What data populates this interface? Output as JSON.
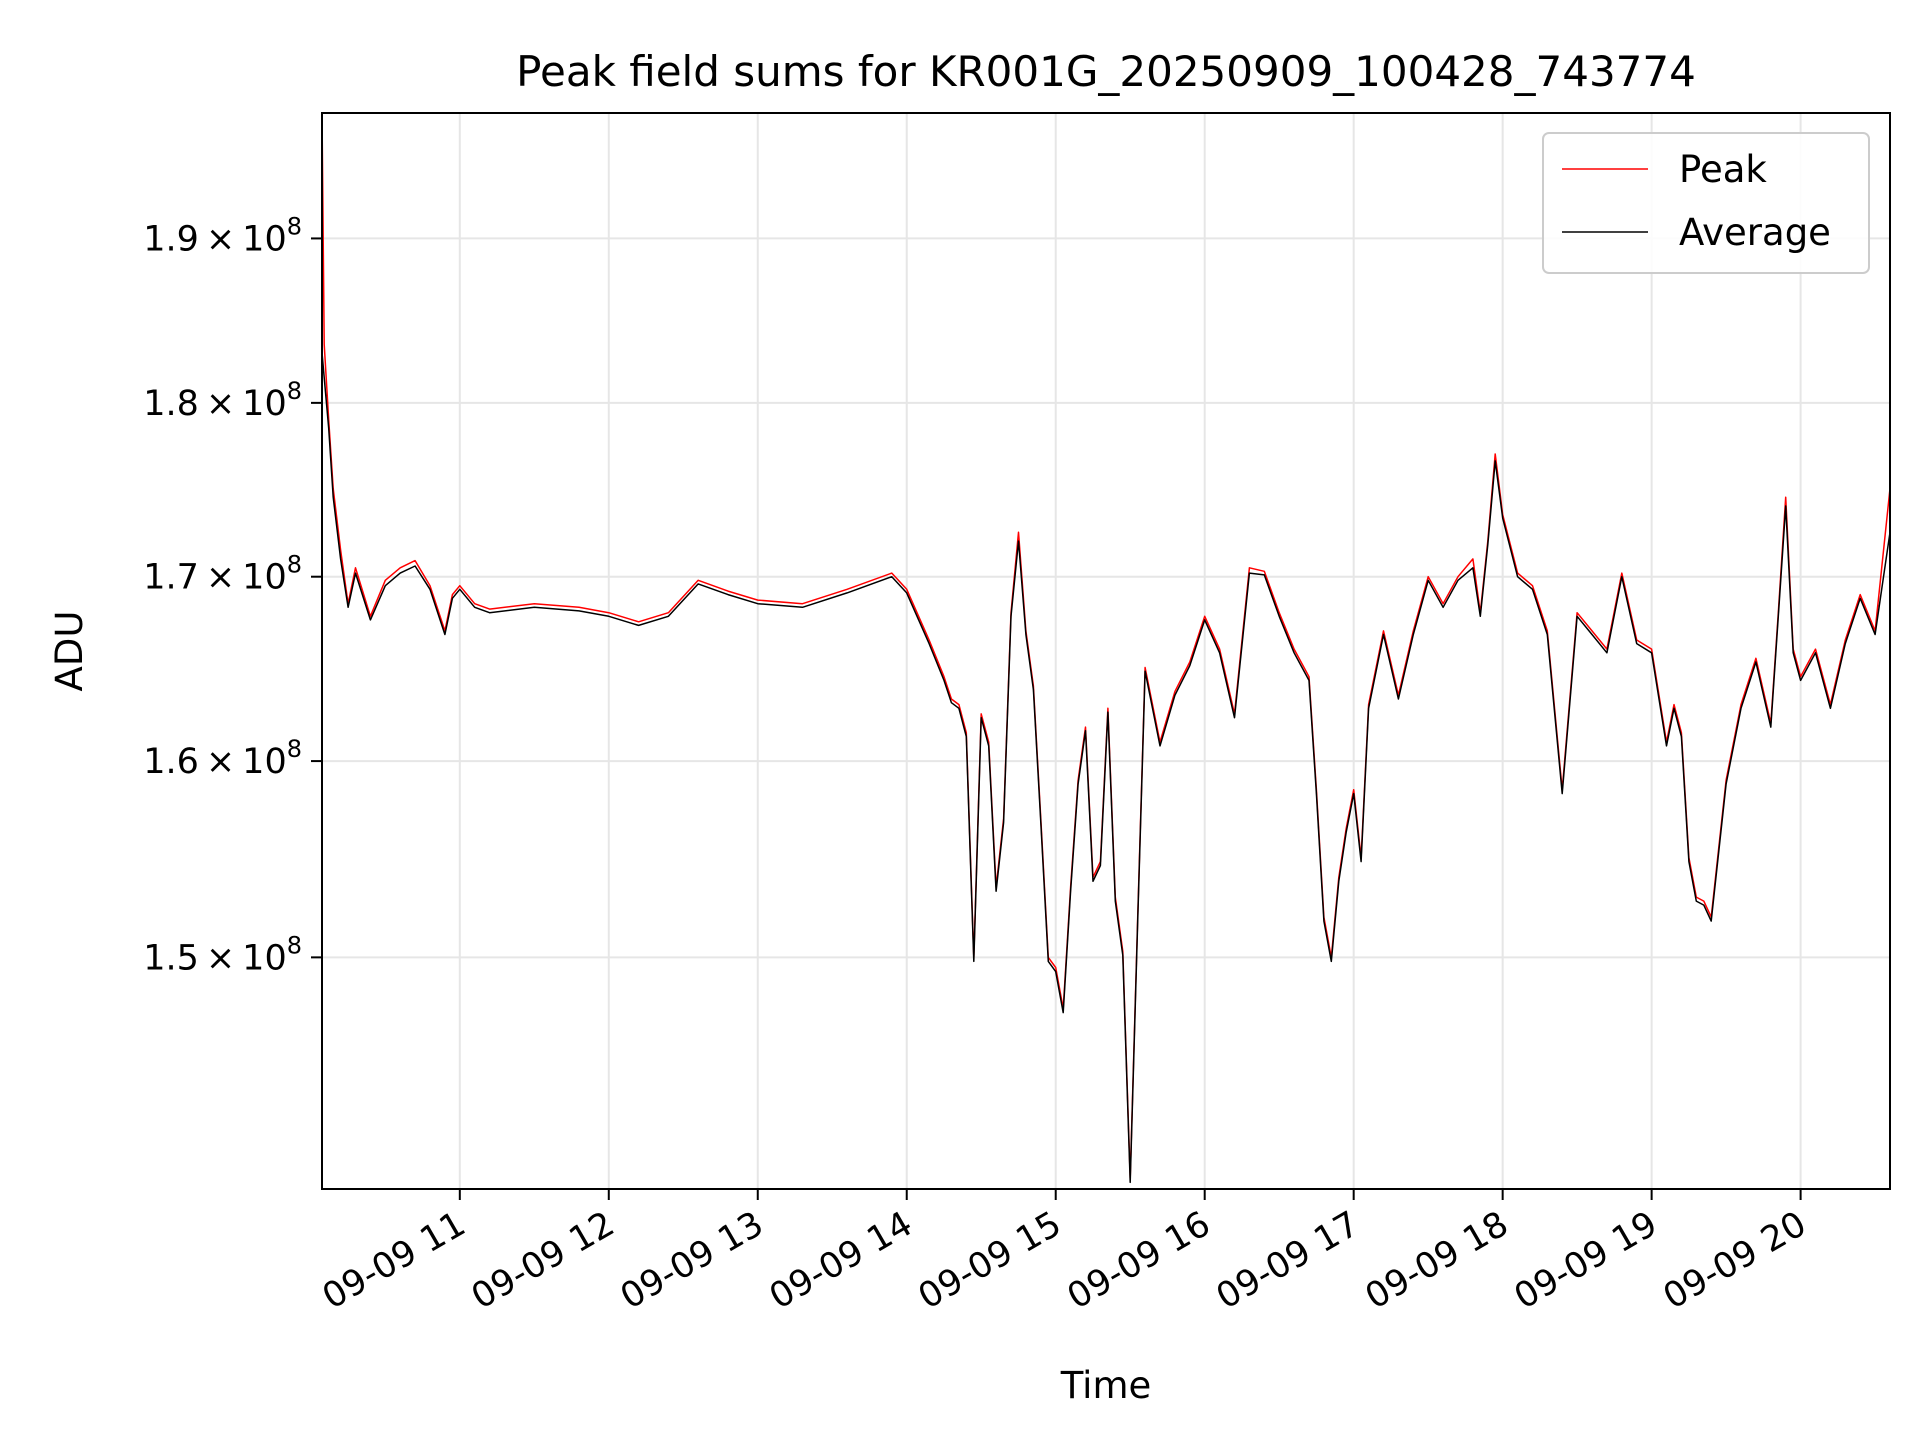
{
  "chart_data": {
    "type": "line",
    "title": "Peak field sums for KR001G_20250909_100428_743774",
    "xlabel": "Time",
    "ylabel": "ADU",
    "x_tick_labels": [
      "09-09 11",
      "09-09 12",
      "09-09 13",
      "09-09 14",
      "09-09 15",
      "09-09 16",
      "09-09 17",
      "09-09 18",
      "09-09 19",
      "09-09 20"
    ],
    "x_ticks_hours": [
      11,
      12,
      13,
      14,
      15,
      16,
      17,
      18,
      19,
      20
    ],
    "xlim_hours": [
      10.075,
      20.6
    ],
    "y_tick_labels": [
      {
        "value": 150000000,
        "mantissa": "1.5",
        "exp": "8"
      },
      {
        "value": 160000000,
        "mantissa": "1.6",
        "exp": "8"
      },
      {
        "value": 170000000,
        "mantissa": "1.7",
        "exp": "8"
      },
      {
        "value": 180000000,
        "mantissa": "1.8",
        "exp": "8"
      },
      {
        "value": 190000000,
        "mantissa": "1.9",
        "exp": "8"
      }
    ],
    "ylim": [
      139000000,
      198000000
    ],
    "yscale": "log",
    "grid": true,
    "legend_position": "top-right",
    "series": [
      {
        "name": "Peak",
        "color": "#ff0000",
        "x_hours": [
          10.075,
          10.09,
          10.12,
          10.15,
          10.2,
          10.25,
          10.3,
          10.4,
          10.5,
          10.6,
          10.7,
          10.8,
          10.9,
          10.95,
          11.0,
          11.1,
          11.2,
          11.5,
          11.8,
          12.0,
          12.2,
          12.4,
          12.6,
          12.8,
          13.0,
          13.3,
          13.6,
          13.9,
          14.0,
          14.15,
          14.25,
          14.3,
          14.35,
          14.4,
          14.45,
          14.5,
          14.55,
          14.6,
          14.65,
          14.7,
          14.75,
          14.8,
          14.85,
          14.9,
          14.95,
          15.0,
          15.05,
          15.1,
          15.15,
          15.2,
          15.25,
          15.3,
          15.35,
          15.4,
          15.45,
          15.5,
          15.55,
          15.6,
          15.7,
          15.8,
          15.9,
          16.0,
          16.1,
          16.2,
          16.3,
          16.4,
          16.5,
          16.6,
          16.7,
          16.75,
          16.8,
          16.85,
          16.9,
          16.95,
          17.0,
          17.05,
          17.1,
          17.2,
          17.3,
          17.4,
          17.5,
          17.6,
          17.7,
          17.8,
          17.85,
          17.9,
          17.95,
          18.0,
          18.1,
          18.2,
          18.3,
          18.4,
          18.5,
          18.6,
          18.7,
          18.8,
          18.9,
          19.0,
          19.1,
          19.15,
          19.2,
          19.25,
          19.3,
          19.35,
          19.4,
          19.5,
          19.6,
          19.7,
          19.8,
          19.85,
          19.9,
          19.95,
          20.0,
          20.1,
          20.2,
          20.3,
          20.4,
          20.5,
          20.6
        ],
        "values": [
          198000000,
          183500000,
          179000000,
          175000000,
          171500000,
          168500000,
          170500000,
          167800000,
          169800000,
          170500000,
          170900000,
          169500000,
          167000000,
          169000000,
          169500000,
          168500000,
          168200000,
          168500000,
          168300000,
          168000000,
          167500000,
          168000000,
          169800000,
          169200000,
          168700000,
          168500000,
          169300000,
          170200000,
          169300000,
          166500000,
          164500000,
          163300000,
          163000000,
          161500000,
          150000000,
          162500000,
          161000000,
          153500000,
          157000000,
          168000000,
          172500000,
          167000000,
          164000000,
          157000000,
          150000000,
          149500000,
          147500000,
          153500000,
          159000000,
          161800000,
          154000000,
          154800000,
          162800000,
          153000000,
          150300000,
          139500000,
          152000000,
          165000000,
          161000000,
          163700000,
          165300000,
          167800000,
          166000000,
          162500000,
          170500000,
          170300000,
          168000000,
          166000000,
          164500000,
          158500000,
          152000000,
          150000000,
          154000000,
          156500000,
          158500000,
          155000000,
          163000000,
          167000000,
          163500000,
          167000000,
          170000000,
          168500000,
          170000000,
          171000000,
          168000000,
          172000000,
          177000000,
          173500000,
          170200000,
          169500000,
          167000000,
          158500000,
          168000000,
          167000000,
          166000000,
          170200000,
          166500000,
          166000000,
          161000000,
          163000000,
          161500000,
          155000000,
          153000000,
          152800000,
          152000000,
          159000000,
          163000000,
          165500000,
          162000000,
          168000000,
          174500000,
          166000000,
          164500000,
          166000000,
          163000000,
          166500000,
          169000000,
          167000000,
          175000000
        ]
      },
      {
        "name": "Average",
        "color": "#000000",
        "x_hours": [
          10.075,
          10.09,
          10.12,
          10.15,
          10.2,
          10.25,
          10.3,
          10.4,
          10.5,
          10.6,
          10.7,
          10.8,
          10.9,
          10.95,
          11.0,
          11.1,
          11.2,
          11.5,
          11.8,
          12.0,
          12.2,
          12.4,
          12.6,
          12.8,
          13.0,
          13.3,
          13.6,
          13.9,
          14.0,
          14.15,
          14.25,
          14.3,
          14.35,
          14.4,
          14.45,
          14.5,
          14.55,
          14.6,
          14.65,
          14.7,
          14.75,
          14.8,
          14.85,
          14.9,
          14.95,
          15.0,
          15.05,
          15.1,
          15.15,
          15.2,
          15.25,
          15.3,
          15.35,
          15.4,
          15.45,
          15.5,
          15.55,
          15.6,
          15.7,
          15.8,
          15.9,
          16.0,
          16.1,
          16.2,
          16.3,
          16.4,
          16.5,
          16.6,
          16.7,
          16.75,
          16.8,
          16.85,
          16.9,
          16.95,
          17.0,
          17.05,
          17.1,
          17.2,
          17.3,
          17.4,
          17.5,
          17.6,
          17.7,
          17.8,
          17.85,
          17.9,
          17.95,
          18.0,
          18.1,
          18.2,
          18.3,
          18.4,
          18.5,
          18.6,
          18.7,
          18.8,
          18.9,
          19.0,
          19.1,
          19.15,
          19.2,
          19.25,
          19.3,
          19.35,
          19.4,
          19.5,
          19.6,
          19.7,
          19.8,
          19.85,
          19.9,
          19.95,
          20.0,
          20.1,
          20.2,
          20.3,
          20.4,
          20.5,
          20.6
        ],
        "values": [
          183000000,
          181500000,
          178500000,
          174500000,
          171000000,
          168300000,
          170200000,
          167600000,
          169500000,
          170200000,
          170600000,
          169300000,
          166800000,
          168800000,
          169300000,
          168300000,
          168000000,
          168300000,
          168100000,
          167800000,
          167300000,
          167800000,
          169600000,
          169000000,
          168500000,
          168300000,
          169100000,
          170000000,
          169100000,
          166300000,
          164300000,
          163100000,
          162800000,
          161300000,
          149800000,
          162300000,
          160800000,
          153300000,
          156800000,
          167800000,
          172000000,
          166800000,
          163800000,
          156800000,
          149800000,
          149300000,
          147300000,
          153300000,
          158800000,
          161600000,
          153800000,
          154600000,
          162600000,
          152800000,
          150100000,
          139300000,
          151800000,
          164800000,
          160800000,
          163500000,
          165100000,
          167600000,
          165800000,
          162300000,
          170200000,
          170100000,
          167800000,
          165800000,
          164300000,
          158300000,
          151800000,
          149800000,
          153800000,
          156300000,
          158300000,
          154800000,
          162800000,
          166800000,
          163300000,
          166800000,
          169800000,
          168300000,
          169800000,
          170500000,
          167800000,
          171800000,
          176600000,
          173300000,
          170000000,
          169300000,
          166800000,
          158300000,
          167800000,
          166800000,
          165800000,
          170000000,
          166300000,
          165800000,
          160800000,
          162800000,
          161300000,
          154800000,
          152800000,
          152600000,
          151800000,
          158800000,
          162800000,
          165300000,
          161800000,
          167800000,
          174000000,
          165800000,
          164300000,
          165800000,
          162800000,
          166300000,
          168800000,
          166800000,
          172500000
        ]
      }
    ]
  }
}
